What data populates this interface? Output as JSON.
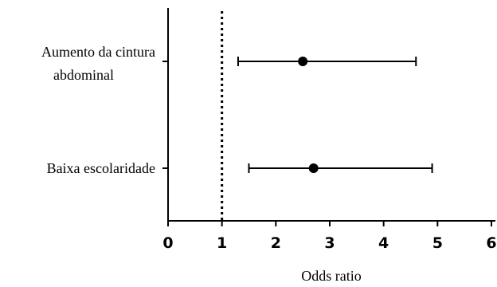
{
  "chart_data": {
    "type": "forest",
    "xlabel": "Odds ratio",
    "xlim": [
      0,
      6
    ],
    "xticks": [
      0,
      1,
      2,
      3,
      4,
      5,
      6
    ],
    "reference_line": 1,
    "grid": false,
    "categories": [
      {
        "label_lines": [
          "Aumento da cintura",
          "abdominal"
        ],
        "estimate": 2.5,
        "ci_low": 1.3,
        "ci_high": 4.6
      },
      {
        "label_lines": [
          "Baixa escolaridade"
        ],
        "estimate": 2.7,
        "ci_low": 1.5,
        "ci_high": 4.9
      }
    ]
  }
}
